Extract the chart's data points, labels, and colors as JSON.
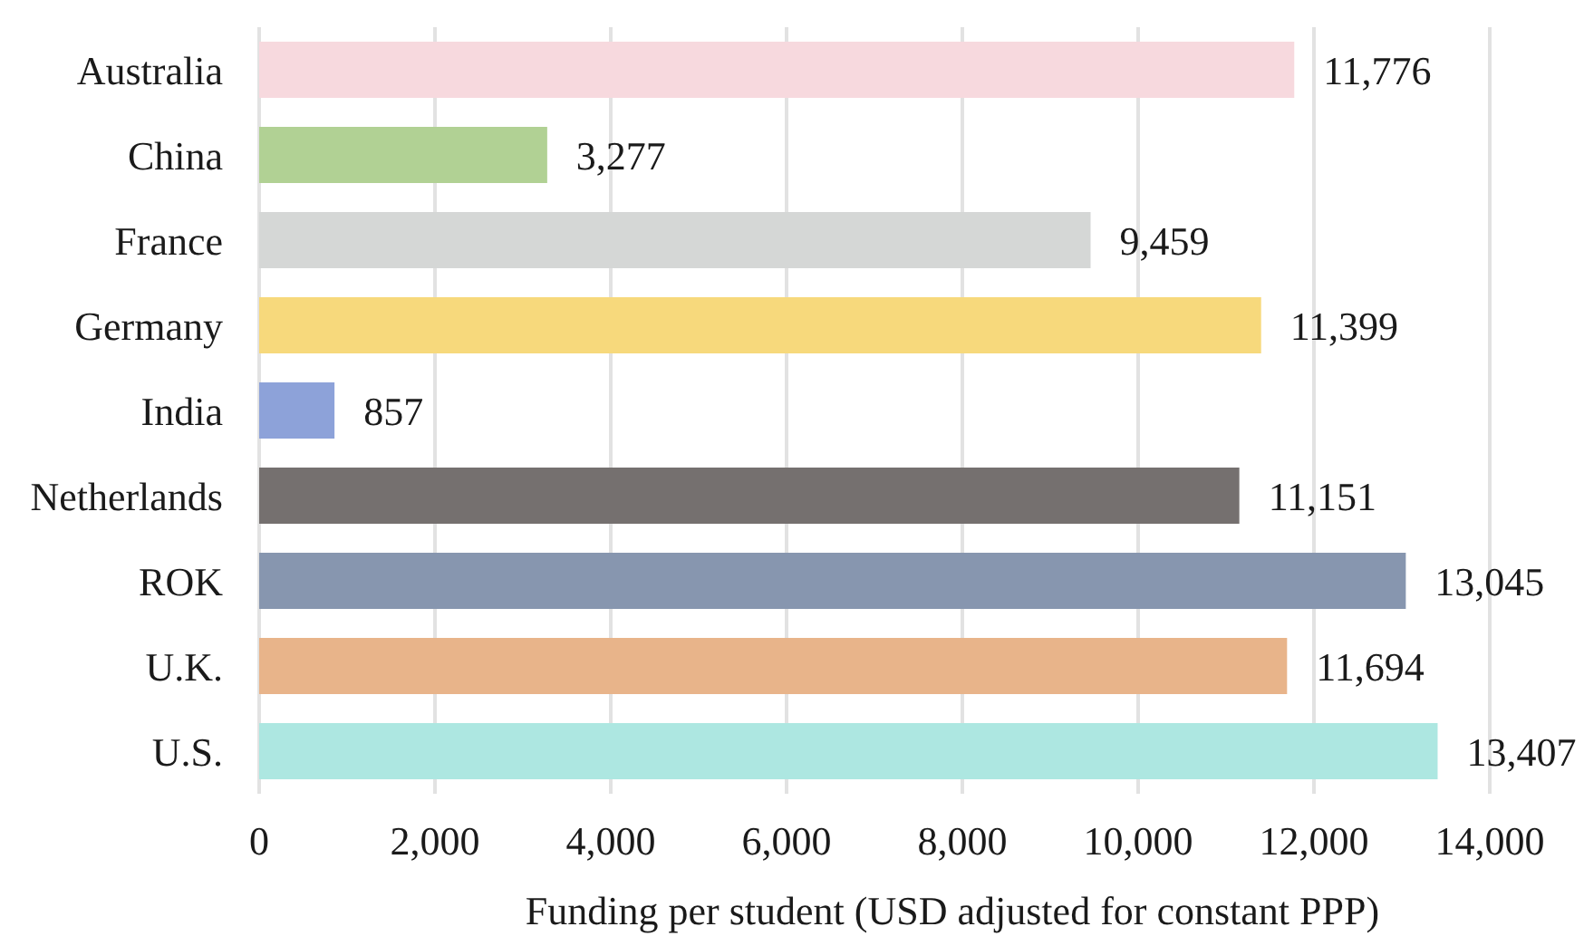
{
  "chart_data": {
    "type": "bar",
    "orientation": "horizontal",
    "xlabel": "Funding per student (USD adjusted for constant PPP)",
    "categories": [
      "Australia",
      "China",
      "France",
      "Germany",
      "India",
      "Netherlands",
      "ROK",
      "U.K.",
      "U.S."
    ],
    "values": [
      11776,
      3277,
      9459,
      11399,
      857,
      11151,
      13045,
      11694,
      13407
    ],
    "colors": [
      "#f7d9de",
      "#b1d194",
      "#d5d7d6",
      "#f7d97c",
      "#8da2d9",
      "#75706f",
      "#8796af",
      "#e8b48a",
      "#ade7e1"
    ],
    "value_labels": [
      "11,776",
      "3,277",
      "9,459",
      "11,399",
      "857",
      "11,151",
      "13,045",
      "11,694",
      "13,407"
    ],
    "xlim": [
      0,
      14000
    ],
    "xticks": [
      0,
      {
        "value": 2000,
        "label": "2,000"
      },
      {
        "value": 4000,
        "label": "4,000"
      },
      {
        "value": 6000,
        "label": "6,000"
      },
      {
        "value": 8000,
        "label": "8,000"
      },
      {
        "value": 10000,
        "label": "10,000"
      },
      {
        "value": 12000,
        "label": "12,000"
      },
      {
        "value": 14000,
        "label": "14,000"
      }
    ],
    "grid": "x"
  }
}
